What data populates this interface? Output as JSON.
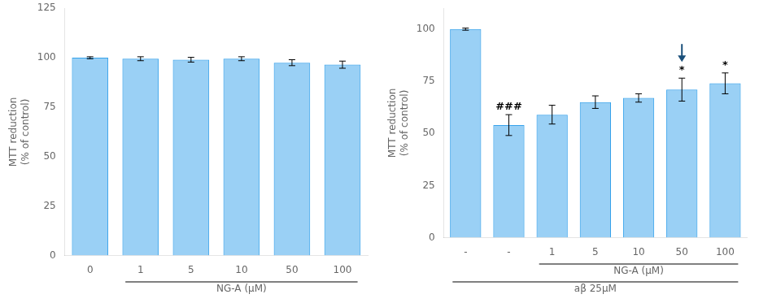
{
  "chart_data": [
    {
      "type": "bar",
      "categories": [
        "0",
        "1",
        "5",
        "10",
        "50",
        "100"
      ],
      "values": [
        100,
        99.5,
        99.0,
        99.5,
        97.5,
        96.5
      ],
      "errors": [
        0.5,
        1.0,
        1.2,
        1.0,
        1.5,
        1.8
      ],
      "ylabel": "MTT reduction\n(% of control)",
      "ylim": [
        0,
        125
      ],
      "yticks": [
        0,
        25,
        50,
        75,
        100,
        125
      ],
      "grid": false,
      "brackets": [
        {
          "text": "NG-A (μM)",
          "from": 1,
          "to": 5
        }
      ]
    },
    {
      "type": "bar",
      "categories": [
        "-",
        "-",
        "1",
        "5",
        "10",
        "50",
        "100"
      ],
      "values": [
        100,
        54,
        59,
        65,
        67,
        71,
        74
      ],
      "errors": [
        0.5,
        5.0,
        4.5,
        3.0,
        2.0,
        5.5,
        5.0
      ],
      "ylabel": "MTT reduction\n(% of control)",
      "ylim": [
        0,
        110
      ],
      "yticks": [
        0,
        25,
        50,
        75,
        100
      ],
      "grid": false,
      "annotations": [
        {
          "text": "###",
          "at": 1
        },
        {
          "text": "*",
          "at": 5
        },
        {
          "text": "*",
          "at": 6
        },
        {
          "marker": "arrow",
          "at": 5,
          "color": "#1a4f7a"
        }
      ],
      "brackets": [
        {
          "text": "NG-A (μM)",
          "from": 2,
          "to": 6
        },
        {
          "text": "aβ 25μM",
          "from": 0,
          "to": 6
        }
      ]
    }
  ]
}
